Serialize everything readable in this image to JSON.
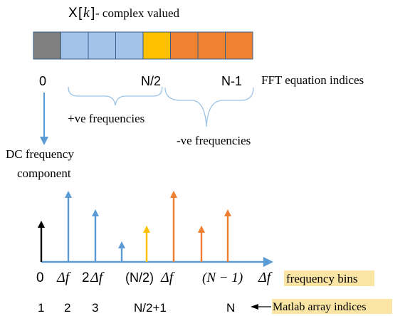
{
  "title": {
    "prefix": "X",
    "bracket_open": "[",
    "var": "k",
    "bracket_close": "]",
    "suffix": " - complex valued"
  },
  "array_cells": [
    {
      "color": "#808080"
    },
    {
      "color": "#a4c3ea"
    },
    {
      "color": "#a4c3ea"
    },
    {
      "color": "#a4c3ea"
    },
    {
      "color": "#ffc000"
    },
    {
      "color": "#ef8230"
    },
    {
      "color": "#ef8230"
    },
    {
      "color": "#ef8230"
    }
  ],
  "fft_indices": {
    "zero": "0",
    "half": "N/2",
    "last": "N-1",
    "label": "FFT equation indices"
  },
  "brace_labels": {
    "positive": "+ve frequencies",
    "negative": "-ve frequencies"
  },
  "dc_label": {
    "line1": "DC frequency",
    "line2": "component"
  },
  "spectrum": {
    "bars": [
      {
        "height": 0.58,
        "color": "#000000"
      },
      {
        "height": 1.0,
        "color": "#5b9bd5"
      },
      {
        "height": 0.74,
        "color": "#5b9bd5"
      },
      {
        "height": 0.29,
        "color": "#5b9bd5"
      },
      {
        "height": 0.51,
        "color": "#ffc000"
      },
      {
        "height": 1.0,
        "color": "#ed7d31"
      },
      {
        "height": 0.51,
        "color": "#ed7d31"
      },
      {
        "height": 0.74,
        "color": "#ed7d31"
      }
    ]
  },
  "freq_labels": {
    "zero": "0",
    "df": "Δf",
    "df2_coef": "2",
    "df2": "Δf",
    "half_prefix": "(N/2)",
    "half_df": "Δf",
    "last_prefix": "(N − 1)",
    "last_df": "Δf",
    "legend": "frequency bins"
  },
  "matlab_indices": {
    "i1": "1",
    "i2": "2",
    "i3": "3",
    "half": "N/2+1",
    "last": "N",
    "legend": "Matlab array indices"
  },
  "colors": {
    "highlight": "#fae5a5",
    "axis": "#5b9bd5",
    "brace": "#9dc3e6"
  }
}
